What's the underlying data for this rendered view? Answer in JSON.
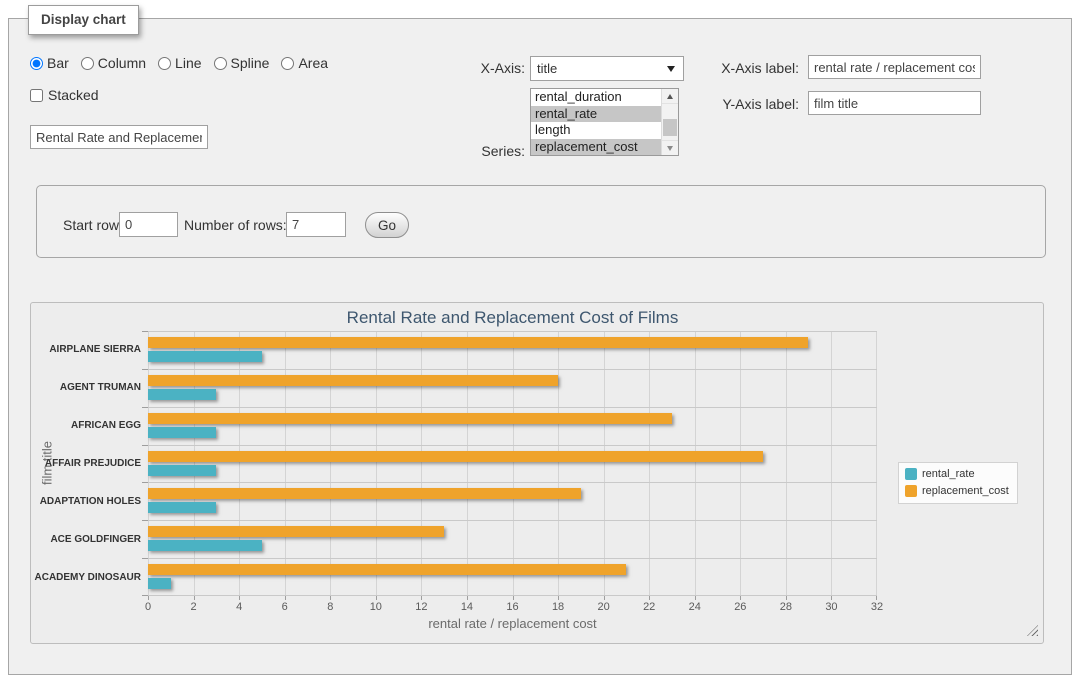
{
  "panel": {
    "tab_label": "Display chart"
  },
  "chart_type": {
    "options": [
      "Bar",
      "Column",
      "Line",
      "Spline",
      "Area"
    ],
    "selected": "Bar"
  },
  "stacked": {
    "label": "Stacked",
    "checked": false
  },
  "title_input": {
    "value": "Rental Rate and Replacemer"
  },
  "x_axis": {
    "label": "X-Axis:",
    "selected": "title"
  },
  "series_select": {
    "label": "Series:",
    "options": [
      "rental_duration",
      "rental_rate",
      "length",
      "replacement_cost"
    ],
    "selected": [
      "rental_rate",
      "replacement_cost"
    ]
  },
  "x_axis_label_field": {
    "label": "X-Axis label:",
    "value": "rental rate / replacement cost"
  },
  "y_axis_label_field": {
    "label": "Y-Axis label:",
    "value": "film title"
  },
  "row_controls": {
    "start_row_label": "Start row:",
    "start_row_value": "0",
    "num_rows_label": "Number of rows:",
    "num_rows_value": "7",
    "go_label": "Go"
  },
  "chart_data": {
    "type": "bar",
    "title": "Rental Rate and Replacement Cost of Films",
    "categories": [
      "AIRPLANE SIERRA",
      "AGENT TRUMAN",
      "AFRICAN EGG",
      "AFFAIR PREJUDICE",
      "ADAPTATION HOLES",
      "ACE GOLDFINGER",
      "ACADEMY DINOSAUR"
    ],
    "series": [
      {
        "name": "rental_rate",
        "color": "#4BB2C3",
        "values": [
          4.99,
          2.99,
          2.99,
          2.99,
          2.99,
          4.99,
          0.99
        ]
      },
      {
        "name": "replacement_cost",
        "color": "#EFA32B",
        "values": [
          28.99,
          17.99,
          22.99,
          26.99,
          18.99,
          12.99,
          20.99
        ]
      }
    ],
    "group_order": [
      "replacement_cost",
      "rental_rate"
    ],
    "xlabel": "rental rate / replacement cost",
    "ylabel": "film title",
    "xlim": [
      0,
      32
    ],
    "x_ticks": [
      0,
      2,
      4,
      6,
      8,
      10,
      12,
      14,
      16,
      18,
      20,
      22,
      24,
      26,
      28,
      30,
      32
    ],
    "legend_position": "right",
    "grid": true
  }
}
